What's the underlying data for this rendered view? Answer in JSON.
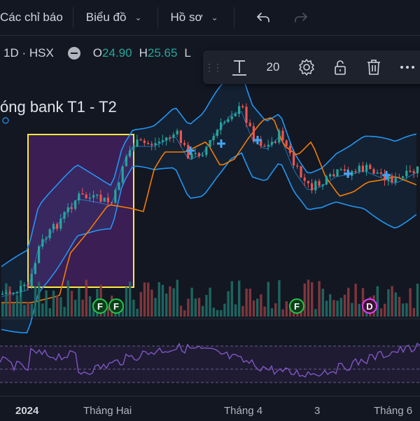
{
  "toolbar": {
    "indicators_label": "Các chỉ báo",
    "charts_label": "Biểu đồ",
    "profiles_label": "Hồ sơ",
    "undo_icon": "undo-icon",
    "redo_icon": "redo-icon"
  },
  "symbol_bar": {
    "interval_exchange": "1D · HSX",
    "open_label": "O",
    "open_value": "24.90",
    "high_label": "H",
    "high_value": "25.65",
    "low_label": "L"
  },
  "drawing_toolbar": {
    "text_tool_icon": "text-icon",
    "font_size": "20",
    "settings_icon": "gear-icon",
    "lock_icon": "lock-icon",
    "delete_icon": "trash-icon",
    "more_icon": "more-icon"
  },
  "chart": {
    "annotation_text": "óng bank T1 - T2",
    "x_labels": [
      "2024",
      "Tháng Hai",
      "Tháng 4",
      "3",
      "Tháng 6"
    ],
    "event_markers": [
      "F",
      "F",
      "F",
      "D"
    ],
    "colors": {
      "background": "#131722",
      "up": "#26a69a",
      "down": "#ef5350",
      "bollinger": "#2196f3",
      "ma": "#f57c00",
      "highlight_border": "#ffeb3b",
      "highlight_fill": "#4a2166",
      "rsi": "#7e57c2"
    }
  }
}
